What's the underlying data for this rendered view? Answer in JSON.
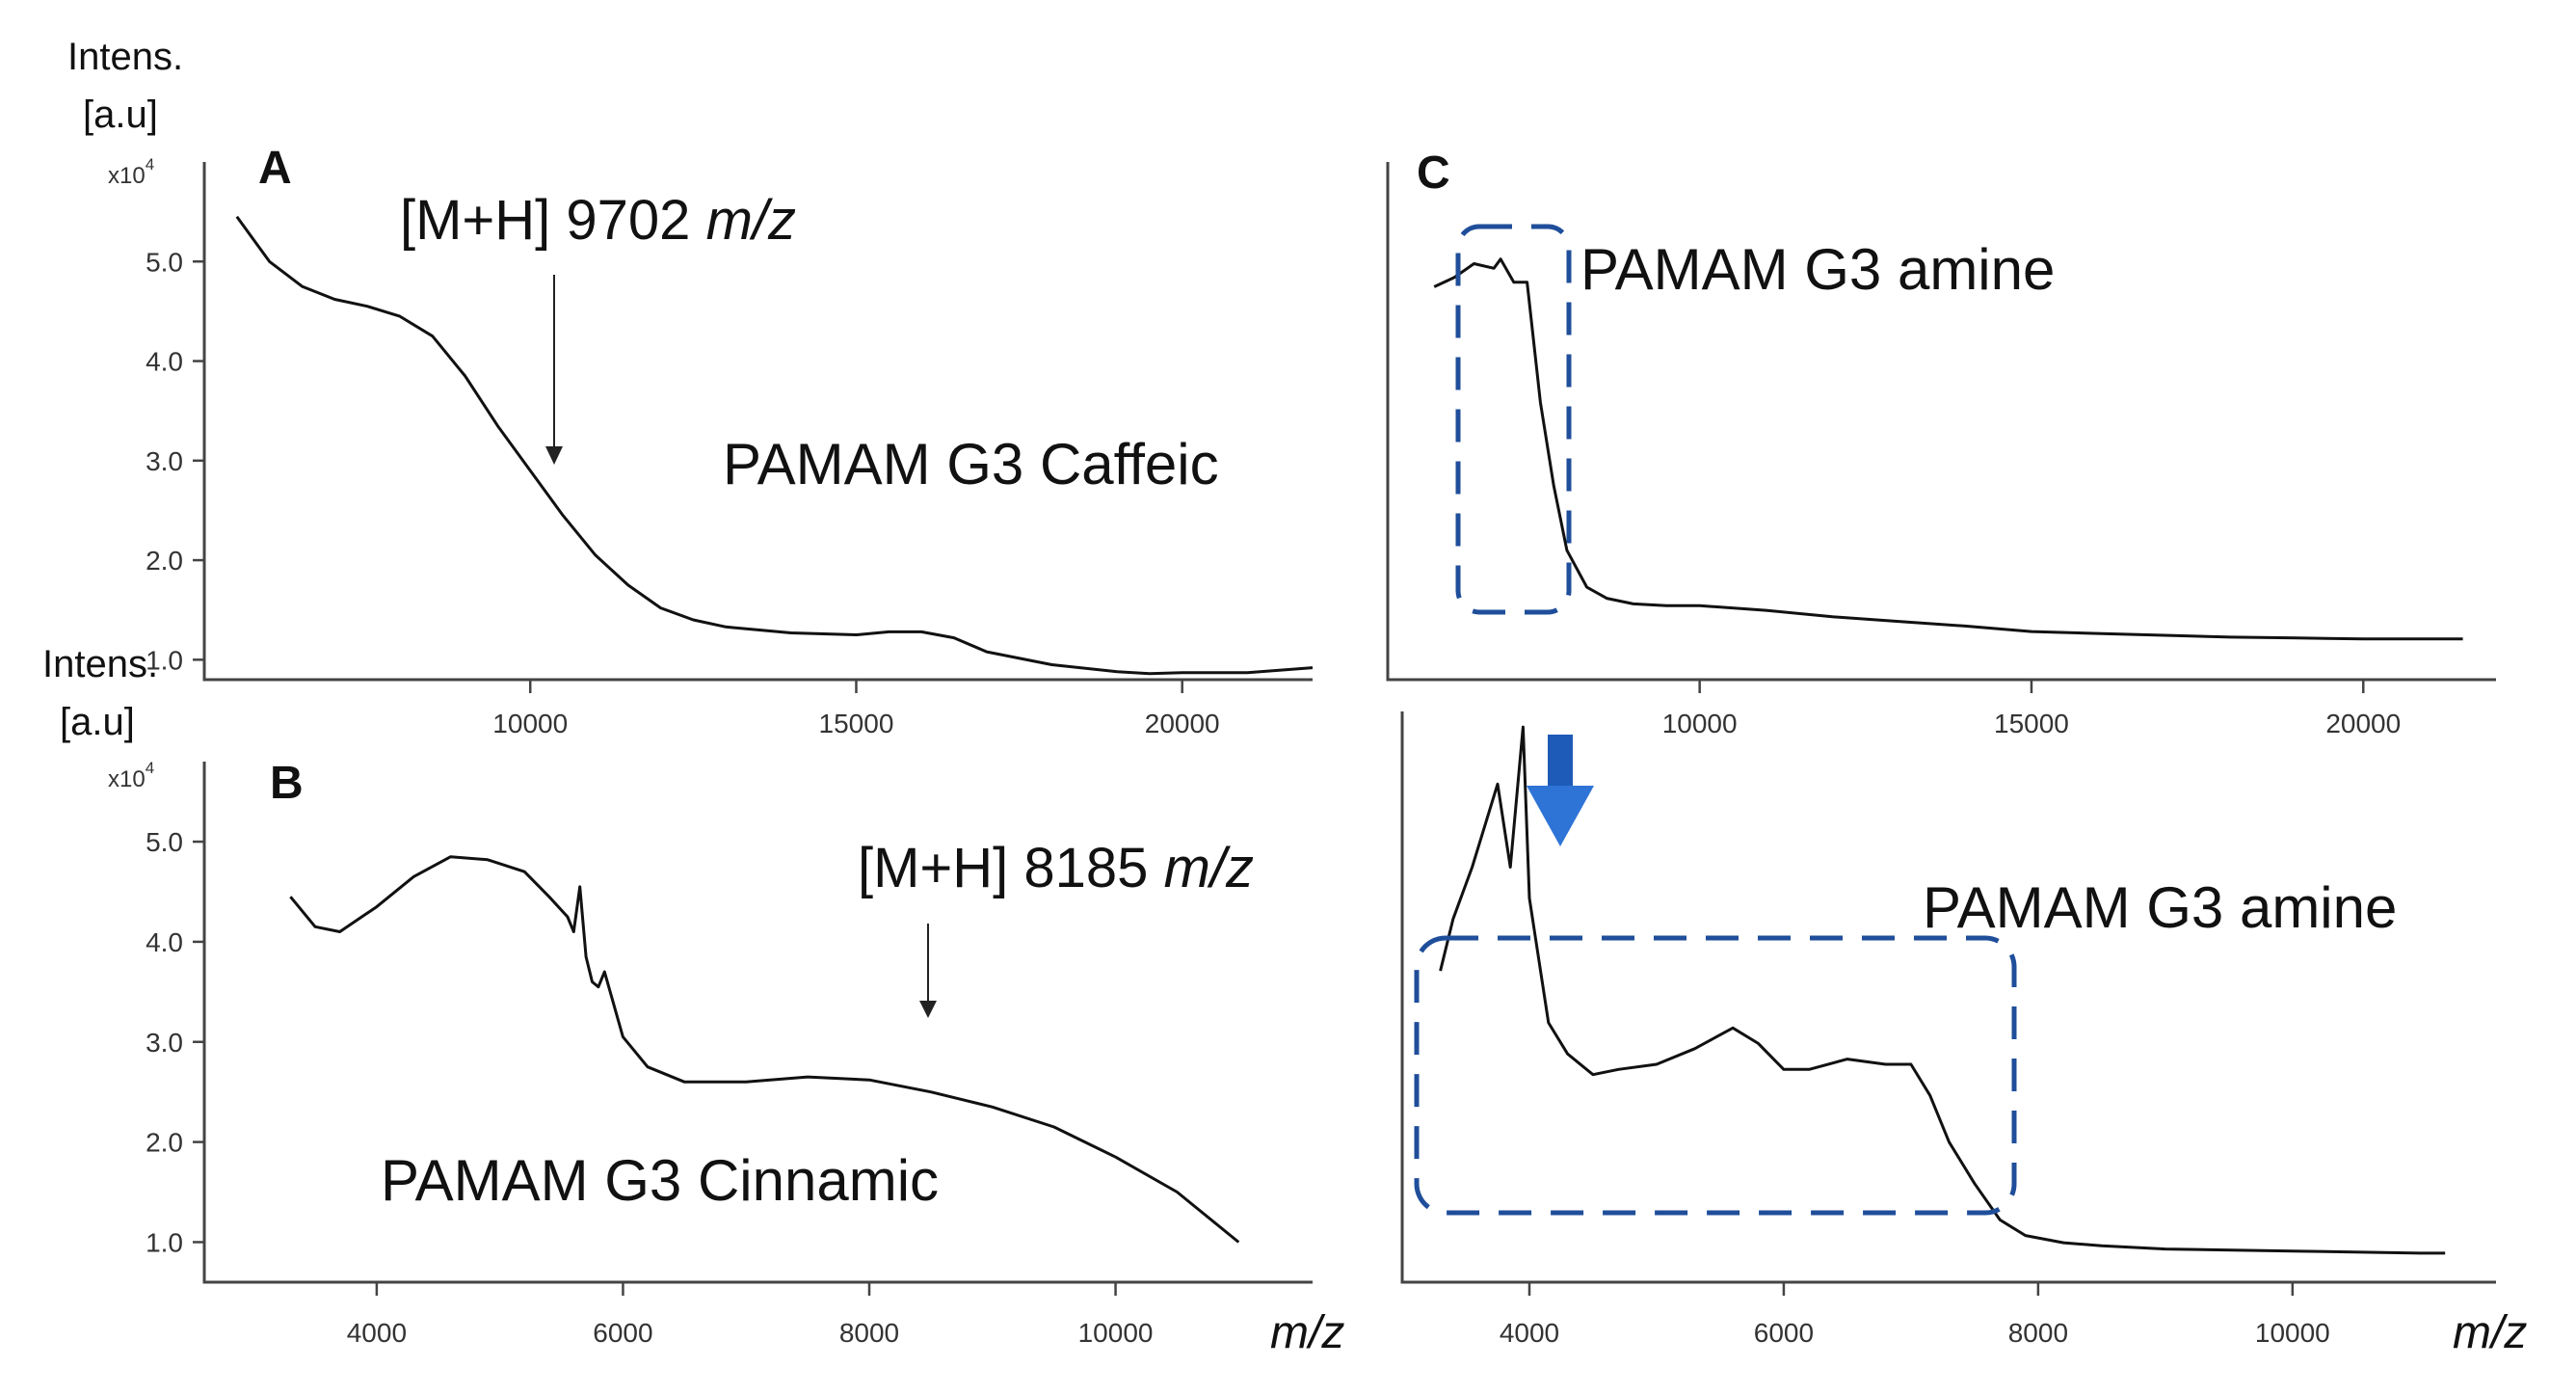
{
  "chart_data": [
    {
      "panel": "A",
      "type": "line",
      "ylabel": [
        "Intens.",
        "[a.u]"
      ],
      "y_multiplier": "x10^4",
      "ylim": [
        0.8,
        6.0
      ],
      "yticks": [
        "1.0",
        "2.0",
        "3.0",
        "4.0",
        "5.0"
      ],
      "xlim": [
        5000,
        22000
      ],
      "xticks": [
        "10000",
        "15000",
        "20000"
      ],
      "xlabel": "",
      "series": [
        {
          "name": "PAMAM G3 Caffeic",
          "x": [
            5500,
            6000,
            6500,
            7000,
            7500,
            8000,
            8500,
            9000,
            9500,
            10000,
            10500,
            11000,
            11500,
            12000,
            12500,
            13000,
            14000,
            15000,
            15500,
            16000,
            16500,
            17000,
            18000,
            19000,
            19500,
            20000,
            21000,
            22000
          ],
          "y": [
            5.45,
            5.0,
            4.75,
            4.62,
            4.55,
            4.45,
            4.25,
            3.85,
            3.35,
            2.9,
            2.45,
            2.05,
            1.75,
            1.52,
            1.4,
            1.33,
            1.27,
            1.25,
            1.28,
            1.28,
            1.22,
            1.08,
            0.95,
            0.88,
            0.86,
            0.87,
            0.87,
            0.92
          ]
        }
      ],
      "annotations": [
        {
          "text": "[M+H] 9702 ",
          "italic": "m/z",
          "x": 10500,
          "y": 2.45
        }
      ]
    },
    {
      "panel": "B",
      "type": "line",
      "ylabel": [
        "Intens.",
        "[a.u]"
      ],
      "y_multiplier": "x10^4",
      "ylim": [
        0.6,
        5.8
      ],
      "yticks": [
        "1.0",
        "2.0",
        "3.0",
        "4.0",
        "5.0"
      ],
      "xlim": [
        2600,
        11600
      ],
      "xticks": [
        "4000",
        "6000",
        "8000",
        "10000"
      ],
      "xlabel": "m/z",
      "series": [
        {
          "name": "PAMAM G3 Cinnamic",
          "x": [
            3300,
            3500,
            3700,
            4000,
            4300,
            4600,
            4900,
            5200,
            5400,
            5550,
            5600,
            5650,
            5700,
            5750,
            5800,
            5850,
            6000,
            6200,
            6500,
            7000,
            7500,
            8000,
            8500,
            9000,
            9500,
            10000,
            10500,
            11000
          ],
          "y": [
            4.45,
            4.15,
            4.1,
            4.35,
            4.65,
            4.85,
            4.82,
            4.7,
            4.45,
            4.25,
            4.1,
            4.55,
            3.85,
            3.6,
            3.55,
            3.7,
            3.05,
            2.75,
            2.6,
            2.6,
            2.65,
            2.62,
            2.5,
            2.35,
            2.15,
            1.85,
            1.5,
            1.0
          ]
        }
      ],
      "annotations": [
        {
          "text": "[M+H] 8185 ",
          "italic": "m/z",
          "x": 8185,
          "y": 2.62
        }
      ]
    },
    {
      "panel": "C",
      "type": "line",
      "ylim": [
        0.4,
        6.0
      ],
      "xlim": [
        5300,
        22000
      ],
      "xticks": [
        "10000",
        "15000",
        "20000"
      ],
      "xlabel": "",
      "series": [
        {
          "name": "PAMAM G3 amine",
          "x": [
            6000,
            6300,
            6600,
            6900,
            7000,
            7200,
            7400,
            7600,
            7800,
            8000,
            8300,
            8600,
            9000,
            9500,
            10000,
            11000,
            12000,
            13000,
            14000,
            15000,
            16000,
            17000,
            18000,
            19000,
            20000,
            21000,
            21500
          ],
          "y": [
            4.65,
            4.75,
            4.9,
            4.85,
            4.95,
            4.7,
            4.7,
            3.4,
            2.5,
            1.8,
            1.4,
            1.28,
            1.22,
            1.2,
            1.2,
            1.15,
            1.08,
            1.03,
            0.98,
            0.92,
            0.9,
            0.88,
            0.86,
            0.85,
            0.84,
            0.84,
            0.84
          ]
        }
      ]
    },
    {
      "panel": "C-lower",
      "type": "line",
      "ylim": [
        0.5,
        6.0
      ],
      "xlim": [
        3000,
        11600
      ],
      "xticks": [
        "4000",
        "6000",
        "8000",
        "10000"
      ],
      "xlabel": "m/z",
      "series": [
        {
          "name": "PAMAM G3 amine",
          "x": [
            3300,
            3400,
            3550,
            3650,
            3750,
            3850,
            3950,
            4000,
            4050,
            4150,
            4300,
            4500,
            4700,
            5000,
            5300,
            5600,
            5800,
            6000,
            6200,
            6500,
            6800,
            7000,
            7150,
            7300,
            7500,
            7700,
            7900,
            8200,
            8500,
            9000,
            10000,
            11000,
            11200
          ],
          "y": [
            3.5,
            4.0,
            4.5,
            4.9,
            5.3,
            4.5,
            5.85,
            4.2,
            3.8,
            3.0,
            2.7,
            2.5,
            2.55,
            2.6,
            2.75,
            2.95,
            2.8,
            2.55,
            2.55,
            2.65,
            2.6,
            2.6,
            2.3,
            1.85,
            1.45,
            1.1,
            0.95,
            0.88,
            0.85,
            0.82,
            0.8,
            0.78,
            0.78
          ]
        }
      ]
    }
  ],
  "labels": {
    "panel_a": "A",
    "panel_b": "B",
    "panel_c": "C",
    "intens_a_1": "Intens.",
    "intens_a_2": "[a.u]",
    "intens_b_1": "Intens.",
    "intens_b_2": "[a.u]",
    "mult_a_base": "x10",
    "mult_a_exp": "4",
    "mult_b_base": "x10",
    "mult_b_exp": "4",
    "name_a": "PAMAM G3 Caffeic",
    "name_b": "PAMAM G3 Cinnamic",
    "name_c_upper": "PAMAM G3 amine",
    "name_c_lower": "PAMAM G3 amine",
    "annot_a_text": "[M+H] 9702 ",
    "annot_a_unit": "m/z",
    "annot_b_text": "[M+H] 8185 ",
    "annot_b_unit": "m/z",
    "xunit_b": "m/z",
    "xunit_c": "m/z"
  },
  "colors": {
    "line": "#111111",
    "box": "#1f4e9a",
    "arrow": "#2e74d6",
    "arrow_light": "#1e5bb8"
  }
}
